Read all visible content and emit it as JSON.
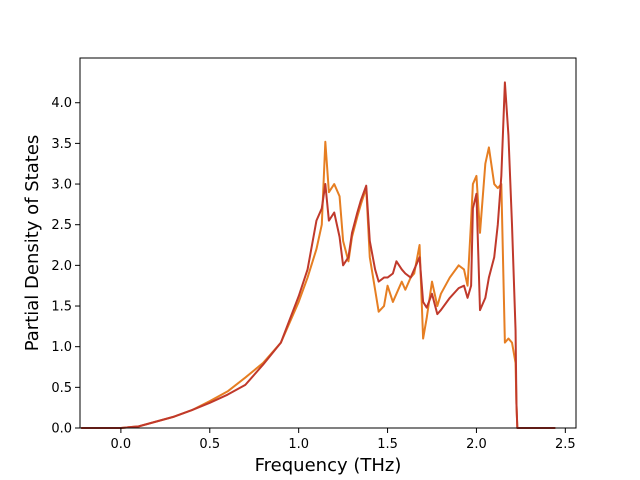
{
  "chart_data": {
    "type": "line",
    "title": "",
    "xlabel": "Frequency (THz)",
    "ylabel": "Partial Density of States",
    "xlim": [
      -0.23,
      2.56
    ],
    "ylim": [
      0.0,
      4.55
    ],
    "xticks": [
      0.0,
      0.5,
      1.0,
      1.5,
      2.0,
      2.5
    ],
    "xtick_labels": [
      "0.0",
      "0.5",
      "1.0",
      "1.5",
      "2.0",
      "2.5"
    ],
    "yticks": [
      0.0,
      0.5,
      1.0,
      1.5,
      2.0,
      2.5,
      3.0,
      3.5,
      4.0
    ],
    "ytick_labels": [
      "0.0",
      "0.5",
      "1.0",
      "1.5",
      "2.0",
      "2.5",
      "3.0",
      "3.5",
      "4.0"
    ],
    "grid": false,
    "legend": "none",
    "series": [
      {
        "color": "#e67e22",
        "x": [
          -0.22,
          0.0,
          0.1,
          0.2,
          0.3,
          0.4,
          0.5,
          0.6,
          0.7,
          0.8,
          0.9,
          1.0,
          1.05,
          1.1,
          1.13,
          1.15,
          1.17,
          1.2,
          1.23,
          1.25,
          1.28,
          1.3,
          1.33,
          1.35,
          1.38,
          1.4,
          1.43,
          1.45,
          1.48,
          1.5,
          1.53,
          1.55,
          1.58,
          1.6,
          1.63,
          1.65,
          1.68,
          1.7,
          1.72,
          1.75,
          1.78,
          1.8,
          1.85,
          1.9,
          1.93,
          1.95,
          1.97,
          1.98,
          2.0,
          2.02,
          2.05,
          2.07,
          2.1,
          2.12,
          2.14,
          2.16,
          2.18,
          2.2,
          2.22,
          2.225,
          2.23,
          2.3,
          2.44
        ],
        "y": [
          0.0,
          0.0,
          0.02,
          0.08,
          0.14,
          0.22,
          0.33,
          0.45,
          0.62,
          0.8,
          1.05,
          1.55,
          1.85,
          2.2,
          2.5,
          3.52,
          2.9,
          3.0,
          2.85,
          2.3,
          2.05,
          2.35,
          2.6,
          2.75,
          2.95,
          2.1,
          1.7,
          1.43,
          1.5,
          1.75,
          1.55,
          1.65,
          1.8,
          1.7,
          1.85,
          1.9,
          2.25,
          1.1,
          1.35,
          1.8,
          1.5,
          1.65,
          1.85,
          2.0,
          1.95,
          1.75,
          2.55,
          3.0,
          3.1,
          2.4,
          3.25,
          3.45,
          3.0,
          2.95,
          3.0,
          1.05,
          1.1,
          1.05,
          0.8,
          0.3,
          0.0,
          0.0,
          0.0
        ]
      },
      {
        "color": "#c0392b",
        "x": [
          -0.22,
          0.0,
          0.1,
          0.2,
          0.3,
          0.4,
          0.5,
          0.6,
          0.7,
          0.8,
          0.9,
          1.0,
          1.05,
          1.1,
          1.13,
          1.15,
          1.17,
          1.2,
          1.23,
          1.25,
          1.28,
          1.3,
          1.33,
          1.35,
          1.38,
          1.4,
          1.43,
          1.45,
          1.48,
          1.5,
          1.53,
          1.55,
          1.58,
          1.6,
          1.63,
          1.65,
          1.68,
          1.7,
          1.72,
          1.75,
          1.78,
          1.8,
          1.85,
          1.9,
          1.93,
          1.95,
          1.97,
          1.98,
          2.0,
          2.02,
          2.05,
          2.07,
          2.1,
          2.12,
          2.14,
          2.16,
          2.18,
          2.2,
          2.22,
          2.225,
          2.23,
          2.3,
          2.44
        ],
        "y": [
          0.0,
          0.0,
          0.02,
          0.08,
          0.14,
          0.22,
          0.31,
          0.41,
          0.53,
          0.78,
          1.05,
          1.62,
          1.95,
          2.55,
          2.7,
          3.0,
          2.55,
          2.65,
          2.35,
          2.0,
          2.1,
          2.4,
          2.65,
          2.8,
          2.98,
          2.3,
          1.95,
          1.8,
          1.85,
          1.85,
          1.9,
          2.05,
          1.95,
          1.9,
          1.85,
          1.95,
          2.1,
          1.55,
          1.48,
          1.65,
          1.4,
          1.45,
          1.6,
          1.72,
          1.75,
          1.6,
          1.75,
          2.7,
          2.88,
          1.45,
          1.6,
          1.85,
          2.1,
          2.5,
          3.1,
          4.25,
          3.6,
          2.5,
          1.2,
          0.3,
          0.0,
          0.0,
          0.0
        ]
      }
    ]
  }
}
